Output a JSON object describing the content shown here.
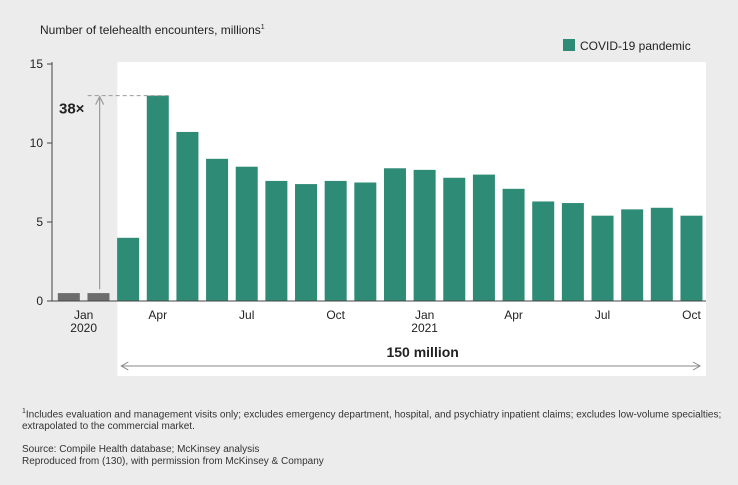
{
  "colors": {
    "bar": "#2e8b76",
    "pre_pandemic_bar": "#6d6d6d",
    "shade": "#ffffff",
    "page_bg": "#ececec"
  },
  "chart_data": {
    "type": "bar",
    "title": "Number of telehealth encounters, millions",
    "title_footnote_mark": "1",
    "ylim": [
      0,
      15
    ],
    "yticks": [
      0,
      5,
      10,
      15
    ],
    "grid": false,
    "legend": {
      "position": "top-right",
      "label": "COVID-19 pandemic"
    },
    "x_tick_labels": [
      {
        "index": 0.5,
        "line1": "Jan",
        "line2": "2020"
      },
      {
        "index": 3,
        "line1": "Apr",
        "line2": ""
      },
      {
        "index": 6,
        "line1": "Jul",
        "line2": ""
      },
      {
        "index": 9,
        "line1": "Oct",
        "line2": ""
      },
      {
        "index": 12,
        "line1": "Jan",
        "line2": "2021"
      },
      {
        "index": 15,
        "line1": "Apr",
        "line2": ""
      },
      {
        "index": 18,
        "line1": "Jul",
        "line2": ""
      },
      {
        "index": 21,
        "line1": "Oct",
        "line2": ""
      }
    ],
    "series": [
      {
        "group": "pre-pandemic",
        "values": [
          0.5,
          0.5
        ]
      },
      {
        "group": "pandemic",
        "name": "COVID-19 pandemic",
        "values": [
          4.0,
          13.0,
          10.7,
          9.0,
          8.5,
          7.6,
          7.4,
          7.6,
          7.5,
          8.4,
          8.3,
          7.8,
          8.0,
          7.1,
          6.3,
          6.2,
          5.4,
          5.8,
          5.9,
          5.4
        ]
      }
    ],
    "annotations": {
      "multiplier": "38×",
      "total": "150 million"
    }
  },
  "footnote": {
    "mark": "1",
    "text": "Includes evaluation and management visits only; excludes emergency department, hospital, and psychiatry inpatient claims; excludes low-volume specialties; extrapolated to the commercial market.",
    "source": "Source: Compile Health database; McKinsey analysis",
    "reproduced": "Reproduced from (130), with permission from McKinsey & Company"
  }
}
